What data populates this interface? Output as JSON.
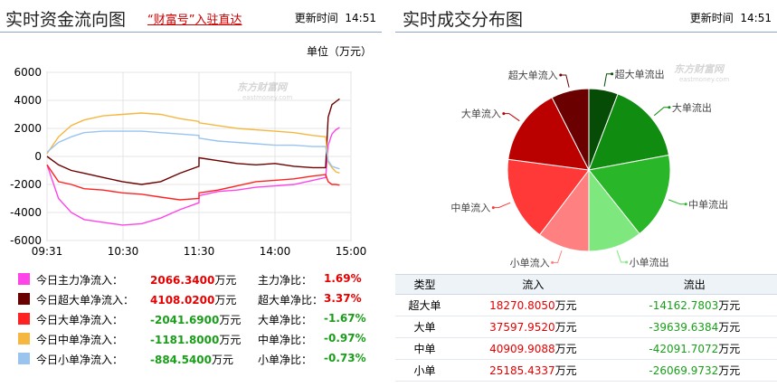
{
  "left": {
    "title": "实时资金流向图",
    "promo": "“财富号”入驻直达",
    "update_label": "更新时间",
    "update_time": "14:51",
    "unit_label": "单位（万元）",
    "watermark": "东方财富网",
    "watermark_sub": "eastmoney.com"
  },
  "right": {
    "title": "实时成交分布图",
    "update_label": "更新时间",
    "update_time": "14:51",
    "watermark": "东方财富网",
    "watermark_sub": "eastmoney.com"
  },
  "legend": [
    {
      "name": "今日主力净流入：",
      "value": "2066.3400",
      "unit": "万元",
      "ratio_label": "主力净比：",
      "ratio": "1.69%",
      "color": "#ff44e8",
      "value_color": "red",
      "ratio_color": "red"
    },
    {
      "name": "今日超大单净流入：",
      "value": "4108.0200",
      "unit": "万元",
      "ratio_label": "超大单净比：",
      "ratio": "3.37%",
      "color": "#6b0000",
      "value_color": "red",
      "ratio_color": "red"
    },
    {
      "name": "今日大单净流入：",
      "value": "-2041.6900",
      "unit": "万元",
      "ratio_label": "大单净比：",
      "ratio": "-1.67%",
      "color": "#ff2222",
      "value_color": "green",
      "ratio_color": "green"
    },
    {
      "name": "今日中单净流入：",
      "value": "-1181.8000",
      "unit": "万元",
      "ratio_label": "中单净比：",
      "ratio": "-0.97%",
      "color": "#f5b740",
      "value_color": "green",
      "ratio_color": "green"
    },
    {
      "name": "今日小单净流入：",
      "value": "-884.5400",
      "unit": "万元",
      "ratio_label": "小单净比：",
      "ratio": "-0.73%",
      "color": "#99c4f0",
      "value_color": "green",
      "ratio_color": "green"
    }
  ],
  "table": {
    "headers": [
      "类型",
      "流入",
      "流出"
    ],
    "unit": "万元",
    "rows": [
      {
        "type": "超大单",
        "in": "18270.8050",
        "out": "-14162.7803"
      },
      {
        "type": "大单",
        "in": "37597.9520",
        "out": "-39639.6384"
      },
      {
        "type": "中单",
        "in": "40909.9088",
        "out": "-42091.7072"
      },
      {
        "type": "小单",
        "in": "25185.4337",
        "out": "-26069.9732"
      }
    ]
  },
  "chart_data": [
    {
      "type": "line",
      "title": "实时资金流向图",
      "ylabel": "单位（万元）",
      "ylim": [
        -6000,
        6000
      ],
      "yticks": [
        6000,
        4000,
        2000,
        0,
        -2000,
        -4000,
        -6000
      ],
      "xlim": [
        "09:30",
        "15:00"
      ],
      "xticks": [
        "09:31",
        "10:30",
        "11:30",
        "14:00",
        "15:00"
      ],
      "grid": true,
      "series": [
        {
          "name": "今日主力净流入",
          "color": "#ff44e8",
          "x": [
            "09:31",
            "09:40",
            "09:50",
            "10:00",
            "10:15",
            "10:30",
            "10:45",
            "11:00",
            "11:15",
            "11:30",
            "13:00",
            "13:15",
            "13:30",
            "13:45",
            "14:00",
            "14:15",
            "14:30",
            "14:40",
            "14:42",
            "14:45",
            "14:48",
            "14:51"
          ],
          "values": [
            -600,
            -3000,
            -4000,
            -4500,
            -4700,
            -4900,
            -4800,
            -4400,
            -3800,
            -3300,
            -2800,
            -2500,
            -2400,
            -2200,
            -2100,
            -2000,
            -1700,
            -1500,
            800,
            1600,
            1900,
            2066
          ]
        },
        {
          "name": "今日超大单净流入",
          "color": "#6b0000",
          "x": [
            "09:31",
            "09:40",
            "09:50",
            "10:00",
            "10:15",
            "10:30",
            "10:45",
            "11:00",
            "11:15",
            "11:30",
            "13:00",
            "13:15",
            "13:30",
            "13:45",
            "14:00",
            "14:15",
            "14:30",
            "14:40",
            "14:42",
            "14:45",
            "14:48",
            "14:51"
          ],
          "values": [
            0,
            -600,
            -1000,
            -1200,
            -1500,
            -1800,
            -2000,
            -1800,
            -1200,
            -700,
            -100,
            -300,
            -500,
            -600,
            -500,
            -700,
            -800,
            -800,
            2800,
            3700,
            3900,
            4108
          ]
        },
        {
          "name": "今日大单净流入",
          "color": "#ff2222",
          "x": [
            "09:31",
            "09:40",
            "09:50",
            "10:00",
            "10:15",
            "10:30",
            "10:45",
            "11:00",
            "11:15",
            "11:30",
            "13:00",
            "13:15",
            "13:30",
            "13:45",
            "14:00",
            "14:15",
            "14:30",
            "14:40",
            "14:42",
            "14:45",
            "14:48",
            "14:51"
          ],
          "values": [
            -600,
            -1800,
            -2000,
            -2300,
            -2400,
            -2600,
            -2700,
            -2900,
            -3100,
            -3000,
            -2600,
            -2400,
            -2100,
            -1800,
            -1700,
            -1600,
            -1400,
            -1300,
            -1800,
            -2000,
            -2000,
            -2042
          ]
        },
        {
          "name": "今日中单净流入",
          "color": "#f5b740",
          "x": [
            "09:31",
            "09:40",
            "09:50",
            "10:00",
            "10:15",
            "10:30",
            "10:45",
            "11:00",
            "11:15",
            "11:30",
            "13:00",
            "13:15",
            "13:30",
            "13:45",
            "14:00",
            "14:15",
            "14:30",
            "14:40",
            "14:42",
            "14:45",
            "14:48",
            "14:51"
          ],
          "values": [
            200,
            1400,
            2200,
            2600,
            2900,
            3000,
            3100,
            3000,
            2700,
            2500,
            2400,
            2200,
            2000,
            1900,
            1800,
            1700,
            1500,
            1400,
            -400,
            -800,
            -1100,
            -1182
          ]
        },
        {
          "name": "今日小单净流入",
          "color": "#99c4f0",
          "x": [
            "09:31",
            "09:40",
            "09:50",
            "10:00",
            "10:15",
            "10:30",
            "10:45",
            "11:00",
            "11:15",
            "11:30",
            "13:00",
            "13:15",
            "13:30",
            "13:45",
            "14:00",
            "14:15",
            "14:30",
            "14:40",
            "14:42",
            "14:45",
            "14:48",
            "14:51"
          ],
          "values": [
            300,
            1000,
            1400,
            1700,
            1800,
            1800,
            1800,
            1700,
            1600,
            1500,
            1300,
            1100,
            1000,
            900,
            800,
            800,
            700,
            700,
            -300,
            -700,
            -800,
            -885
          ]
        }
      ]
    },
    {
      "type": "pie",
      "title": "实时成交分布图",
      "slices": [
        {
          "label": "超大单流出",
          "value": 14162.7803,
          "color": "#064c06"
        },
        {
          "label": "大单流出",
          "value": 39639.6384,
          "color": "#108c10"
        },
        {
          "label": "中单流出",
          "value": 42091.7072,
          "color": "#29b729"
        },
        {
          "label": "小单流出",
          "value": 26069.9732,
          "color": "#7ee87e"
        },
        {
          "label": "小单流入",
          "value": 25185.4337,
          "color": "#ff8080"
        },
        {
          "label": "中单流入",
          "value": 40909.9088,
          "color": "#ff3838"
        },
        {
          "label": "大单流入",
          "value": 37597.952,
          "color": "#bb0000"
        },
        {
          "label": "超大单流入",
          "value": 18270.805,
          "color": "#6a0000"
        }
      ]
    }
  ]
}
